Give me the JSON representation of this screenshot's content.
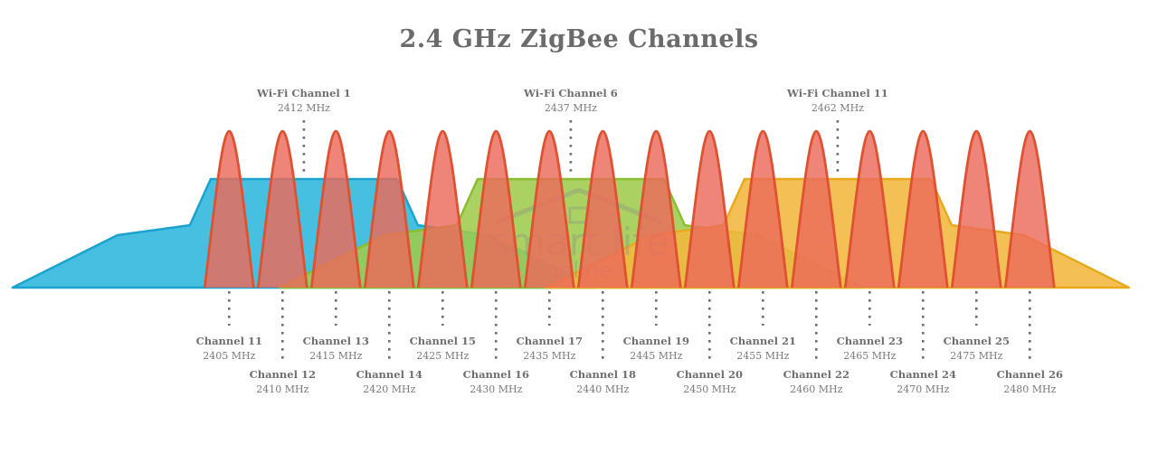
{
  "title": "2.4 GHz ZigBee Channels",
  "watermark": {
    "line1": "smart life",
    "line2": "online",
    "icon": "house-icon"
  },
  "colors": {
    "zigbee_fill": "#eb6a5a",
    "zigbee_stroke": "#de5232",
    "wifi1_fill": "#2eb6dd",
    "wifi1_stroke": "#1aa3ce",
    "wifi6_fill": "#9fcb4d",
    "wifi6_stroke": "#8abd30",
    "wifi11_fill": "#f2b73e",
    "wifi11_stroke": "#e8a91d"
  },
  "wifi_channels": [
    {
      "name": "Wi-Fi Channel 1",
      "freq": "2412 MHz",
      "freq_mhz": 2412
    },
    {
      "name": "Wi-Fi Channel 6",
      "freq": "2437 MHz",
      "freq_mhz": 2437
    },
    {
      "name": "Wi-Fi Channel 11",
      "freq": "2462 MHz",
      "freq_mhz": 2462
    }
  ],
  "zigbee_channels": [
    {
      "name": "Channel 11",
      "freq": "2405 MHz",
      "freq_mhz": 2405
    },
    {
      "name": "Channel 12",
      "freq": "2410 MHz",
      "freq_mhz": 2410
    },
    {
      "name": "Channel 13",
      "freq": "2415 MHz",
      "freq_mhz": 2415
    },
    {
      "name": "Channel 14",
      "freq": "2420 MHz",
      "freq_mhz": 2420
    },
    {
      "name": "Channel 15",
      "freq": "2425 MHz",
      "freq_mhz": 2425
    },
    {
      "name": "Channel 16",
      "freq": "2430 MHz",
      "freq_mhz": 2430
    },
    {
      "name": "Channel 17",
      "freq": "2435 MHz",
      "freq_mhz": 2435
    },
    {
      "name": "Channel 18",
      "freq": "2440 MHz",
      "freq_mhz": 2440
    },
    {
      "name": "Channel 19",
      "freq": "2445 MHz",
      "freq_mhz": 2445
    },
    {
      "name": "Channel 20",
      "freq": "2450 MHz",
      "freq_mhz": 2450
    },
    {
      "name": "Channel 21",
      "freq": "2455 MHz",
      "freq_mhz": 2455
    },
    {
      "name": "Channel 22",
      "freq": "2460 MHz",
      "freq_mhz": 2460
    },
    {
      "name": "Channel 23",
      "freq": "2465 MHz",
      "freq_mhz": 2465
    },
    {
      "name": "Channel 24",
      "freq": "2470 MHz",
      "freq_mhz": 2470
    },
    {
      "name": "Channel 25",
      "freq": "2475 MHz",
      "freq_mhz": 2475
    },
    {
      "name": "Channel 26",
      "freq": "2480 MHz",
      "freq_mhz": 2480
    }
  ]
}
